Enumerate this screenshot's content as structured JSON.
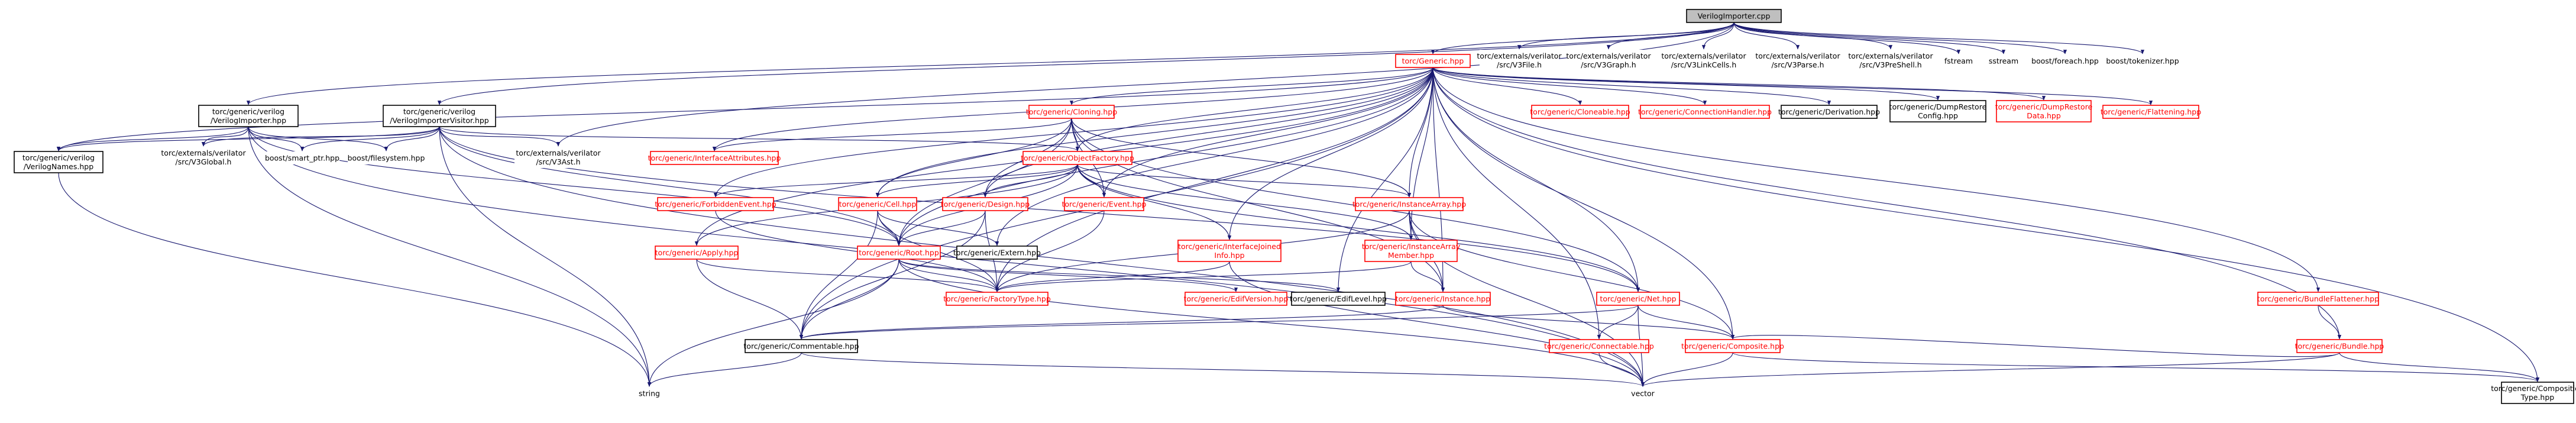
{
  "graph": {
    "root": "VerilogImporter.cpp",
    "colors": {
      "edge": "#191970",
      "node_border_default": "#000000",
      "node_border_missing": "#ff0000",
      "root_fill": "#bfbfbf",
      "node_text_missing": "#ff0000"
    },
    "nodes": [
      {
        "id": "root",
        "label": "VerilogImporter.cpp",
        "style": "root"
      },
      {
        "id": "generic",
        "label": "torc/Generic.hpp",
        "style": "red"
      },
      {
        "id": "v3file",
        "label": "torc/externals/verilator\n/src/V3File.h",
        "style": "plain"
      },
      {
        "id": "v3graph",
        "label": "torc/externals/verilator\n/src/V3Graph.h",
        "style": "plain"
      },
      {
        "id": "v3linkcells",
        "label": "torc/externals/verilator\n/src/V3LinkCells.h",
        "style": "plain"
      },
      {
        "id": "v3parse",
        "label": "torc/externals/verilator\n/src/V3Parse.h",
        "style": "plain"
      },
      {
        "id": "v3preshell",
        "label": "torc/externals/verilator\n/src/V3PreShell.h",
        "style": "plain"
      },
      {
        "id": "fstream",
        "label": "fstream",
        "style": "plain"
      },
      {
        "id": "sstream",
        "label": "sstream",
        "style": "plain"
      },
      {
        "id": "foreach",
        "label": "boost/foreach.hpp",
        "style": "plain"
      },
      {
        "id": "tokenizer",
        "label": "boost/tokenizer.hpp",
        "style": "plain"
      },
      {
        "id": "vimporter",
        "label": "torc/generic/verilog\n/VerilogImporter.hpp",
        "style": "box"
      },
      {
        "id": "vvisitor",
        "label": "torc/generic/verilog\n/VerilogImporterVisitor.hpp",
        "style": "box"
      },
      {
        "id": "cloning",
        "label": "torc/generic/Cloning.hpp",
        "style": "red"
      },
      {
        "id": "cloneable",
        "label": "torc/generic/Cloneable.hpp",
        "style": "red"
      },
      {
        "id": "connhandler",
        "label": "torc/generic/ConnectionHandler.hpp",
        "style": "red"
      },
      {
        "id": "derivation",
        "label": "torc/generic/Derivation.hpp",
        "style": "box"
      },
      {
        "id": "dumpconfig",
        "label": "torc/generic/DumpRestore\nConfig.hpp",
        "style": "box"
      },
      {
        "id": "dumpdata",
        "label": "torc/generic/DumpRestore\nData.hpp",
        "style": "red"
      },
      {
        "id": "flattening",
        "label": "torc/generic/Flattening.hpp",
        "style": "red"
      },
      {
        "id": "vnames",
        "label": "torc/generic/verilog\n/VerilogNames.hpp",
        "style": "box"
      },
      {
        "id": "v3global",
        "label": "torc/externals/verilator\n/src/V3Global.h",
        "style": "plain"
      },
      {
        "id": "smartptr",
        "label": "boost/smart_ptr.hpp",
        "style": "plain"
      },
      {
        "id": "filesystem",
        "label": "boost/filesystem.hpp",
        "style": "plain"
      },
      {
        "id": "v3ast",
        "label": "torc/externals/verilator\n/src/V3Ast.h",
        "style": "plain"
      },
      {
        "id": "ifattrs",
        "label": "torc/generic/InterfaceAttributes.hpp",
        "style": "red"
      },
      {
        "id": "objfactory",
        "label": "torc/generic/ObjectFactory.hpp",
        "style": "red"
      },
      {
        "id": "forbidden",
        "label": "torc/generic/ForbiddenEvent.hpp",
        "style": "red"
      },
      {
        "id": "cell",
        "label": "torc/generic/Cell.hpp",
        "style": "red"
      },
      {
        "id": "design",
        "label": "torc/generic/Design.hpp",
        "style": "red"
      },
      {
        "id": "event",
        "label": "torc/generic/Event.hpp",
        "style": "red"
      },
      {
        "id": "instarray",
        "label": "torc/generic/InstanceArray.hpp",
        "style": "red"
      },
      {
        "id": "extern",
        "label": "torc/generic/Extern.hpp",
        "style": "box"
      },
      {
        "id": "ifjoined",
        "label": "torc/generic/InterfaceJoined\nInfo.hpp",
        "style": "red"
      },
      {
        "id": "instarraymember",
        "label": "torc/generic/InstanceArray\nMember.hpp",
        "style": "red"
      },
      {
        "id": "apply",
        "label": "torc/generic/Apply.hpp",
        "style": "red"
      },
      {
        "id": "root_hpp",
        "label": "torc/generic/Root.hpp",
        "style": "red"
      },
      {
        "id": "factorytype",
        "label": "torc/generic/FactoryType.hpp",
        "style": "red"
      },
      {
        "id": "editversion",
        "label": "torc/generic/EdifVersion.hpp",
        "style": "red"
      },
      {
        "id": "ediflevel",
        "label": "torc/generic/EdifLevel.hpp",
        "style": "box"
      },
      {
        "id": "instance",
        "label": "torc/generic/Instance.hpp",
        "style": "red"
      },
      {
        "id": "net",
        "label": "torc/generic/Net.hpp",
        "style": "red"
      },
      {
        "id": "commentable",
        "label": "torc/generic/Commentable.hpp",
        "style": "box"
      },
      {
        "id": "connectable",
        "label": "torc/generic/Connectable.hpp",
        "style": "red"
      },
      {
        "id": "composite",
        "label": "torc/generic/Composite.hpp",
        "style": "red"
      },
      {
        "id": "bundleflat",
        "label": "torc/generic/BundleFlattener.hpp",
        "style": "red"
      },
      {
        "id": "bundle",
        "label": "torc/generic/Bundle.hpp",
        "style": "red"
      },
      {
        "id": "string",
        "label": "string",
        "style": "plain"
      },
      {
        "id": "vector",
        "label": "vector",
        "style": "plain"
      },
      {
        "id": "comptype",
        "label": "torc/generic/Composition\nType.hpp",
        "style": "box"
      }
    ],
    "edges": [
      [
        "root",
        "generic"
      ],
      [
        "root",
        "v3file"
      ],
      [
        "root",
        "v3graph"
      ],
      [
        "root",
        "v3linkcells"
      ],
      [
        "root",
        "v3parse"
      ],
      [
        "root",
        "v3preshell"
      ],
      [
        "root",
        "fstream"
      ],
      [
        "root",
        "sstream"
      ],
      [
        "root",
        "foreach"
      ],
      [
        "root",
        "tokenizer"
      ],
      [
        "root",
        "vimporter"
      ],
      [
        "root",
        "vvisitor"
      ],
      [
        "root",
        "v3ast"
      ],
      [
        "generic",
        "cloning"
      ],
      [
        "generic",
        "cloneable"
      ],
      [
        "generic",
        "connhandler"
      ],
      [
        "generic",
        "derivation"
      ],
      [
        "generic",
        "dumpconfig"
      ],
      [
        "generic",
        "dumpdata"
      ],
      [
        "generic",
        "flattening"
      ],
      [
        "generic",
        "vnames"
      ],
      [
        "generic",
        "ifattrs"
      ],
      [
        "generic",
        "objfactory"
      ],
      [
        "generic",
        "cell"
      ],
      [
        "generic",
        "design"
      ],
      [
        "generic",
        "event"
      ],
      [
        "generic",
        "instarray"
      ],
      [
        "generic",
        "extern"
      ],
      [
        "generic",
        "ifjoined"
      ],
      [
        "generic",
        "apply"
      ],
      [
        "generic",
        "root_hpp"
      ],
      [
        "generic",
        "factorytype"
      ],
      [
        "generic",
        "ediflevel"
      ],
      [
        "generic",
        "instance"
      ],
      [
        "generic",
        "net"
      ],
      [
        "generic",
        "commentable"
      ],
      [
        "generic",
        "connectable"
      ],
      [
        "generic",
        "composite"
      ],
      [
        "generic",
        "bundleflat"
      ],
      [
        "generic",
        "bundle"
      ],
      [
        "generic",
        "comptype"
      ],
      [
        "generic",
        "instarraymember"
      ],
      [
        "generic",
        "forbidden"
      ],
      [
        "vimporter",
        "vnames"
      ],
      [
        "vimporter",
        "v3global"
      ],
      [
        "vimporter",
        "smartptr"
      ],
      [
        "vimporter",
        "filesystem"
      ],
      [
        "vimporter",
        "string"
      ],
      [
        "vimporter",
        "vector"
      ],
      [
        "vimporter",
        "root_hpp"
      ],
      [
        "vvisitor",
        "vnames"
      ],
      [
        "vvisitor",
        "v3global"
      ],
      [
        "vvisitor",
        "smartptr"
      ],
      [
        "vvisitor",
        "filesystem"
      ],
      [
        "vvisitor",
        "v3ast"
      ],
      [
        "vvisitor",
        "objfactory"
      ],
      [
        "vvisitor",
        "string"
      ],
      [
        "vvisitor",
        "vector"
      ],
      [
        "vvisitor",
        "root_hpp"
      ],
      [
        "vvisitor",
        "net"
      ],
      [
        "vnames",
        "string"
      ],
      [
        "cloning",
        "ifattrs"
      ],
      [
        "cloning",
        "objfactory"
      ],
      [
        "cloning",
        "cell"
      ],
      [
        "cloning",
        "design"
      ],
      [
        "cloning",
        "event"
      ],
      [
        "cloning",
        "instarray"
      ],
      [
        "cloning",
        "root_hpp"
      ],
      [
        "cloning",
        "instance"
      ],
      [
        "cloning",
        "net"
      ],
      [
        "objfactory",
        "forbidden"
      ],
      [
        "objfactory",
        "cell"
      ],
      [
        "objfactory",
        "design"
      ],
      [
        "objfactory",
        "event"
      ],
      [
        "objfactory",
        "instarray"
      ],
      [
        "objfactory",
        "ifjoined"
      ],
      [
        "objfactory",
        "apply"
      ],
      [
        "objfactory",
        "root_hpp"
      ],
      [
        "objfactory",
        "instarraymember"
      ],
      [
        "objfactory",
        "net"
      ],
      [
        "forbidden",
        "factorytype"
      ],
      [
        "cell",
        "root_hpp"
      ],
      [
        "cell",
        "factorytype"
      ],
      [
        "cell",
        "commentable"
      ],
      [
        "cell",
        "extern"
      ],
      [
        "design",
        "root_hpp"
      ],
      [
        "design",
        "factorytype"
      ],
      [
        "design",
        "commentable"
      ],
      [
        "event",
        "factorytype"
      ],
      [
        "instarray",
        "instarraymember"
      ],
      [
        "instarray",
        "factorytype"
      ],
      [
        "instarray",
        "vector"
      ],
      [
        "instarray",
        "composite"
      ],
      [
        "instarray",
        "instance"
      ],
      [
        "ifjoined",
        "factorytype"
      ],
      [
        "ifjoined",
        "vector"
      ],
      [
        "instarraymember",
        "factorytype"
      ],
      [
        "instarraymember",
        "instance"
      ],
      [
        "apply",
        "factorytype"
      ],
      [
        "apply",
        "commentable"
      ],
      [
        "root_hpp",
        "factorytype"
      ],
      [
        "root_hpp",
        "editversion"
      ],
      [
        "root_hpp",
        "ediflevel"
      ],
      [
        "root_hpp",
        "commentable"
      ],
      [
        "root_hpp",
        "string"
      ],
      [
        "root_hpp",
        "vector"
      ],
      [
        "instance",
        "commentable"
      ],
      [
        "instance",
        "composite"
      ],
      [
        "net",
        "connectable"
      ],
      [
        "net",
        "composite"
      ],
      [
        "net",
        "vector"
      ],
      [
        "net",
        "commentable"
      ],
      [
        "commentable",
        "string"
      ],
      [
        "commentable",
        "vector"
      ],
      [
        "connectable",
        "vector"
      ],
      [
        "composite",
        "vector"
      ],
      [
        "composite",
        "comptype"
      ],
      [
        "bundleflat",
        "bundle"
      ],
      [
        "bundle",
        "composite"
      ],
      [
        "bundle",
        "vector"
      ],
      [
        "bundle",
        "comptype"
      ]
    ]
  }
}
